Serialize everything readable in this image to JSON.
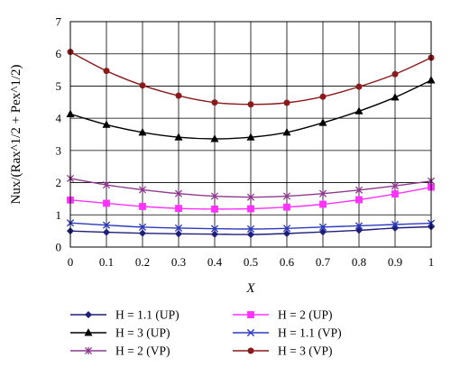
{
  "chart_data": {
    "type": "line",
    "xlabel": "X",
    "ylabel": "Nux/(Rax^1/2 + Pex^1/2)",
    "xlim": [
      0,
      1
    ],
    "ylim": [
      0,
      7
    ],
    "x_ticks": [
      "0",
      "0.1",
      "0.2",
      "0.3",
      "0.4",
      "0.5",
      "0.6",
      "0.7",
      "0.8",
      "0.9",
      "1"
    ],
    "y_ticks": [
      "0",
      "1",
      "2",
      "3",
      "4",
      "5",
      "6",
      "7"
    ],
    "grid": true,
    "legend_position": "bottom",
    "x": [
      0,
      0.1,
      0.2,
      0.3,
      0.4,
      0.5,
      0.6,
      0.7,
      0.8,
      0.9,
      1.0
    ],
    "series": [
      {
        "name": "H = 1.1 (UP)",
        "color": "#1f1f7a",
        "marker": "diamond",
        "values": [
          0.5,
          0.46,
          0.43,
          0.41,
          0.4,
          0.39,
          0.42,
          0.47,
          0.52,
          0.59,
          0.63
        ]
      },
      {
        "name": "H = 2 (UP)",
        "color": "#ff33ff",
        "marker": "square",
        "values": [
          1.46,
          1.36,
          1.26,
          1.2,
          1.18,
          1.19,
          1.24,
          1.33,
          1.47,
          1.65,
          1.86
        ]
      },
      {
        "name": "H = 3 (UP)",
        "color": "#000000",
        "marker": "triangle",
        "values": [
          4.13,
          3.8,
          3.56,
          3.41,
          3.36,
          3.41,
          3.56,
          3.86,
          4.22,
          4.65,
          5.18
        ]
      },
      {
        "name": "H = 1.1 (VP)",
        "color": "#2b3bbf",
        "marker": "x",
        "values": [
          0.75,
          0.68,
          0.62,
          0.59,
          0.57,
          0.56,
          0.58,
          0.62,
          0.66,
          0.7,
          0.74
        ]
      },
      {
        "name": "H = 2 (VP)",
        "color": "#8e3a8e",
        "marker": "star",
        "values": [
          2.13,
          1.93,
          1.78,
          1.66,
          1.58,
          1.55,
          1.58,
          1.66,
          1.77,
          1.9,
          2.05
        ]
      },
      {
        "name": "H = 3 (VP)",
        "color": "#8b1a1a",
        "marker": "circle",
        "values": [
          6.06,
          5.47,
          5.02,
          4.7,
          4.49,
          4.43,
          4.48,
          4.67,
          4.98,
          5.37,
          5.88
        ]
      }
    ]
  }
}
